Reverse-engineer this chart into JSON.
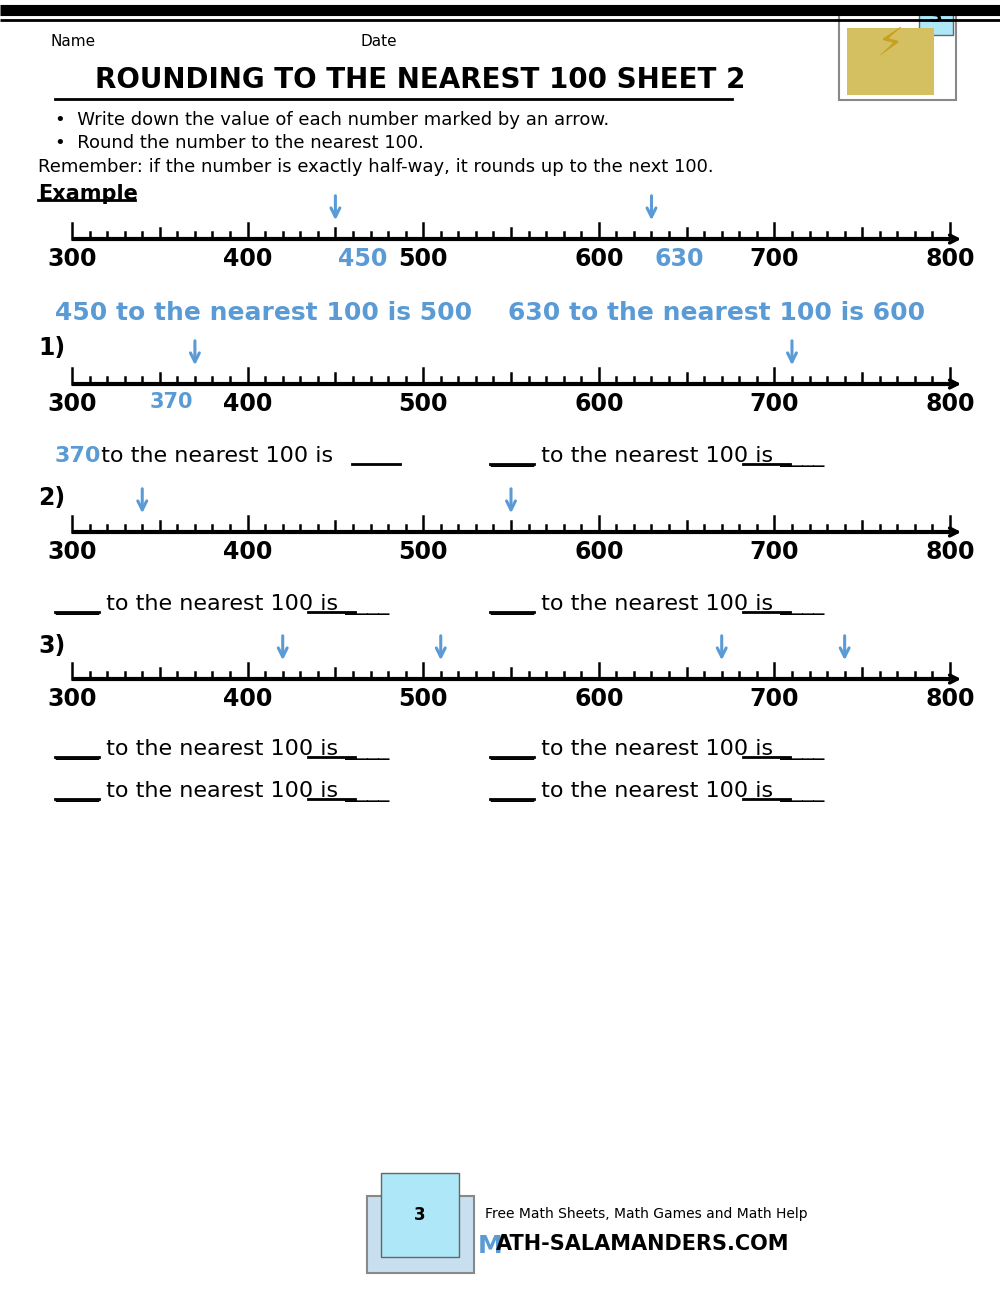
{
  "title": "ROUNDING TO THE NEAREST 100 SHEET 2",
  "bg_color": "#ffffff",
  "black": "#000000",
  "blue": "#5b9bd5",
  "bullet1": "Write down the value of each number marked by an arrow.",
  "bullet2": "Round the number to the nearest 100.",
  "remember": "Remember: if the number is exactly half-way, it rounds up to the next 100.",
  "example_label": "Example",
  "example_arrow_vals": [
    450,
    630
  ],
  "example_ans1": "450 to the nearest 100 is 500",
  "example_ans2": "630 to the nearest 100 is 600",
  "q1_label": "1)",
  "q1_arrow_vals": [
    370,
    710
  ],
  "q2_label": "2)",
  "q2_arrow_vals": [
    340,
    550
  ],
  "q3_label": "3)",
  "q3_arrow_vals": [
    420,
    510,
    670,
    740
  ],
  "nl_min": 300,
  "nl_max": 800,
  "footer_line1": "Free Math Sheets, Math Games and Math Help",
  "footer_line2": "ATH-SALAMANDERS.COM"
}
